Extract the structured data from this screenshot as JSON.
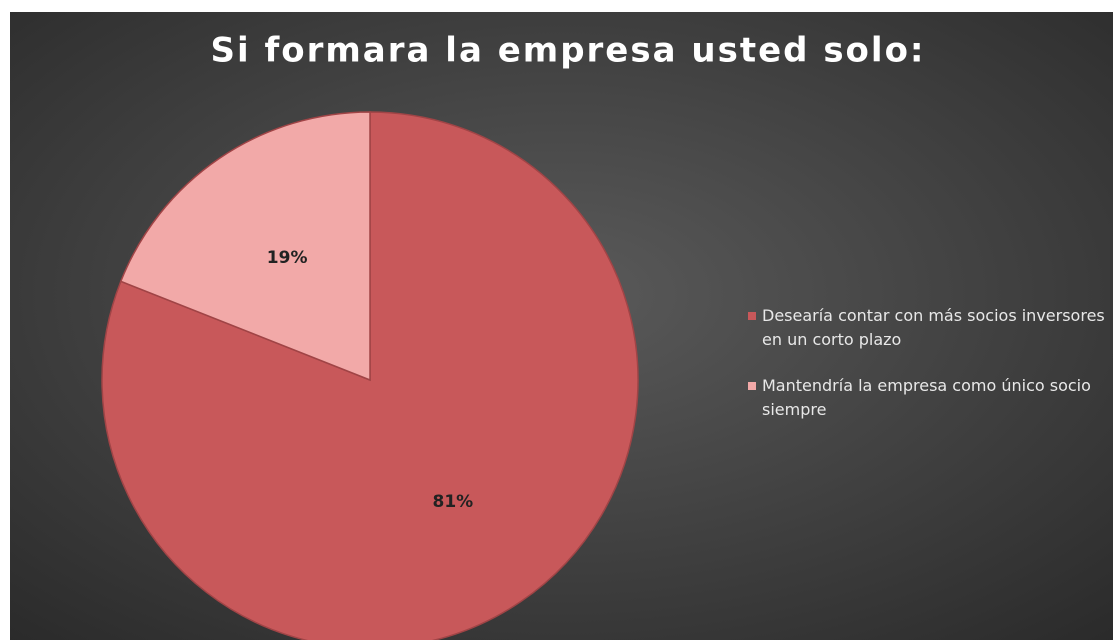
{
  "chart_data": {
    "type": "pie",
    "title": "Si formara la empresa usted solo:",
    "categories": [
      "Desearía contar con más socios inversores en un corto plazo",
      "Mantendría la empresa como único socio siempre"
    ],
    "values": [
      81,
      19
    ],
    "value_labels": [
      "81%",
      "19%"
    ],
    "colors": [
      "#c8585a",
      "#f2a9a8"
    ],
    "legend": "right"
  }
}
